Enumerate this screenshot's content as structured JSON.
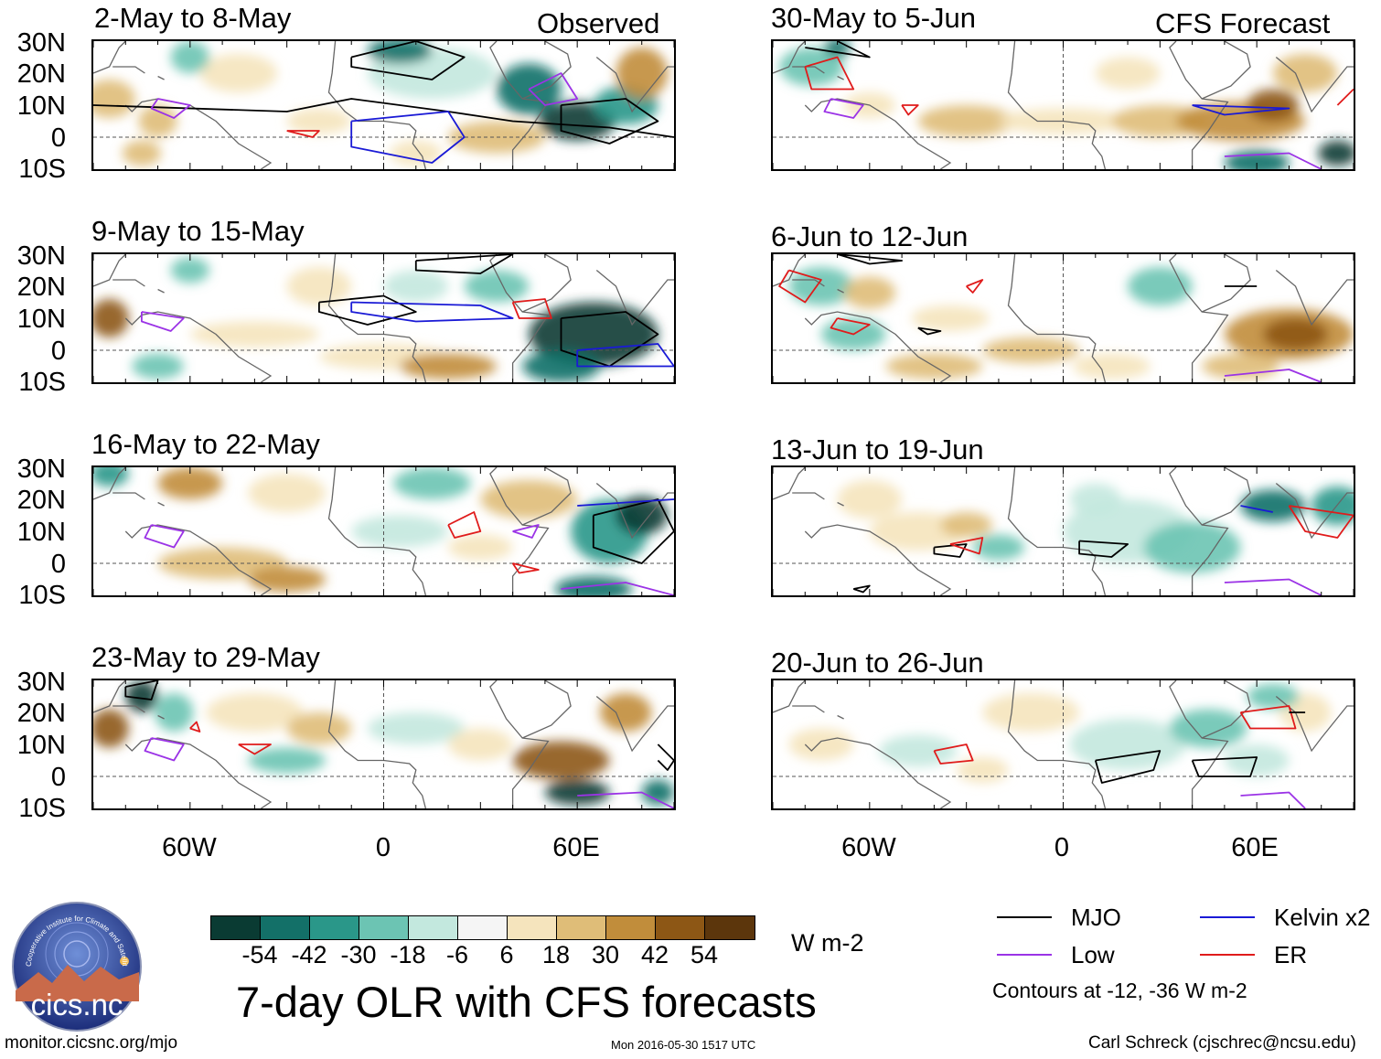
{
  "title": "7-day OLR with CFS forecasts",
  "units": "W m-2",
  "headers": {
    "observed": "Observed",
    "forecast": "CFS Forecast"
  },
  "colors": {
    "mjo": "#000000",
    "kelvin": "#1a1ad6",
    "low": "#9b33e6",
    "er": "#e01b1b",
    "scale": [
      "#0a3b33",
      "#137068",
      "#2a9789",
      "#6cc4b3",
      "#c3e8de",
      "#f5f5f5",
      "#f5e4bd",
      "#dfbd78",
      "#c18d3b",
      "#8d5715",
      "#5c360c"
    ]
  },
  "lat_labels": [
    "30N",
    "20N",
    "10N",
    "0",
    "10S"
  ],
  "lon_labels": [
    "60W",
    "0",
    "60E"
  ],
  "panels": [
    {
      "title": "2-May to 8-May",
      "column": "observed",
      "row": 0
    },
    {
      "title": "9-May to 15-May",
      "column": "observed",
      "row": 1
    },
    {
      "title": "16-May to 22-May",
      "column": "observed",
      "row": 2
    },
    {
      "title": "23-May to 29-May",
      "column": "observed",
      "row": 3
    },
    {
      "title": "30-May to 5-Jun",
      "column": "forecast",
      "row": 0
    },
    {
      "title": "6-Jun to 12-Jun",
      "column": "forecast",
      "row": 1
    },
    {
      "title": "13-Jun to 19-Jun",
      "column": "forecast",
      "row": 2
    },
    {
      "title": "20-Jun to 26-Jun",
      "column": "forecast",
      "row": 3
    }
  ],
  "colorbar_ticks": [
    "-54",
    "-42",
    "-30",
    "-18",
    "-6",
    "6",
    "18",
    "30",
    "42",
    "54"
  ],
  "legend": {
    "mjo": "MJO",
    "kelvin": "Kelvin x2",
    "low": "Low",
    "er": "ER",
    "note": "Contours at -12, -36 W m-2"
  },
  "footer": {
    "left": "monitor.cicsnc.org/mjo",
    "center": "Mon 2016-05-30 1517 UTC",
    "right": "Carl Schreck (cjschrec@ncsu.edu)"
  },
  "logo": {
    "text": "cics.nc",
    "arc_text": "Cooperative Institute for Climate and Satellites"
  }
}
